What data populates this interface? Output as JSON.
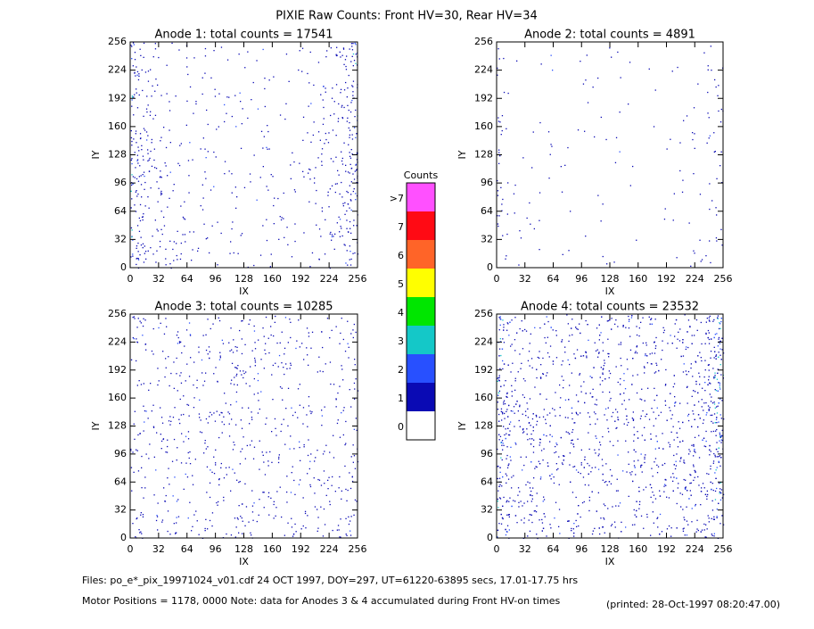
{
  "title": "PIXIE Raw Counts:  Front HV=30, Rear HV=34",
  "panels": [
    {
      "title": "Anode 1: total counts = 17541",
      "xlabel": "IX",
      "ylabel": "IY",
      "xlim": [
        0,
        256
      ],
      "ylim": [
        0,
        256
      ],
      "xticks": [
        0,
        32,
        64,
        96,
        128,
        160,
        192,
        224,
        256
      ],
      "yticks": [
        0,
        32,
        64,
        96,
        128,
        160,
        192,
        224,
        256
      ]
    },
    {
      "title": "Anode 2: total counts = 4891",
      "xlabel": "IX",
      "ylabel": "IY",
      "xlim": [
        0,
        256
      ],
      "ylim": [
        0,
        256
      ],
      "xticks": [
        0,
        32,
        64,
        96,
        128,
        160,
        192,
        224,
        256
      ],
      "yticks": [
        0,
        32,
        64,
        96,
        128,
        160,
        192,
        224,
        256
      ]
    },
    {
      "title": "Anode 3: total counts = 10285",
      "xlabel": "IX",
      "ylabel": "IY",
      "xlim": [
        0,
        256
      ],
      "ylim": [
        0,
        256
      ],
      "xticks": [
        0,
        32,
        64,
        96,
        128,
        160,
        192,
        224,
        256
      ],
      "yticks": [
        0,
        32,
        64,
        96,
        128,
        160,
        192,
        224,
        256
      ]
    },
    {
      "title": "Anode 4: total counts = 23532",
      "xlabel": "IX",
      "ylabel": "IY",
      "xlim": [
        0,
        256
      ],
      "ylim": [
        0,
        256
      ],
      "xticks": [
        0,
        32,
        64,
        96,
        128,
        160,
        192,
        224,
        256
      ],
      "yticks": [
        0,
        32,
        64,
        96,
        128,
        160,
        192,
        224,
        256
      ]
    }
  ],
  "colorbar": {
    "title": "Counts",
    "levels": [
      {
        "label": "0",
        "color": "#ffffff"
      },
      {
        "label": "1",
        "color": "#0a0ab4"
      },
      {
        "label": "2",
        "color": "#2850ff"
      },
      {
        "label": "3",
        "color": "#14c8c8"
      },
      {
        "label": "4",
        "color": "#00e600"
      },
      {
        "label": "5",
        "color": "#ffff00"
      },
      {
        "label": "6",
        "color": "#ff6428"
      },
      {
        "label": "7",
        "color": "#ff0a14"
      },
      {
        "label": ">7",
        "color": "#ff50ff"
      }
    ]
  },
  "footer": {
    "files": "Files: po_e*_pix_19971024_v01.cdf    24 OCT 1997, DOY=297, UT=61220-63895 secs, 17.01-17.75 hrs",
    "motor": "Motor Positions = 1178, 0000    Note: data for Anodes 3 & 4 accumulated during Front HV-on times",
    "printed": "(printed: 28-Oct-1997 08:20:47.00)"
  }
}
